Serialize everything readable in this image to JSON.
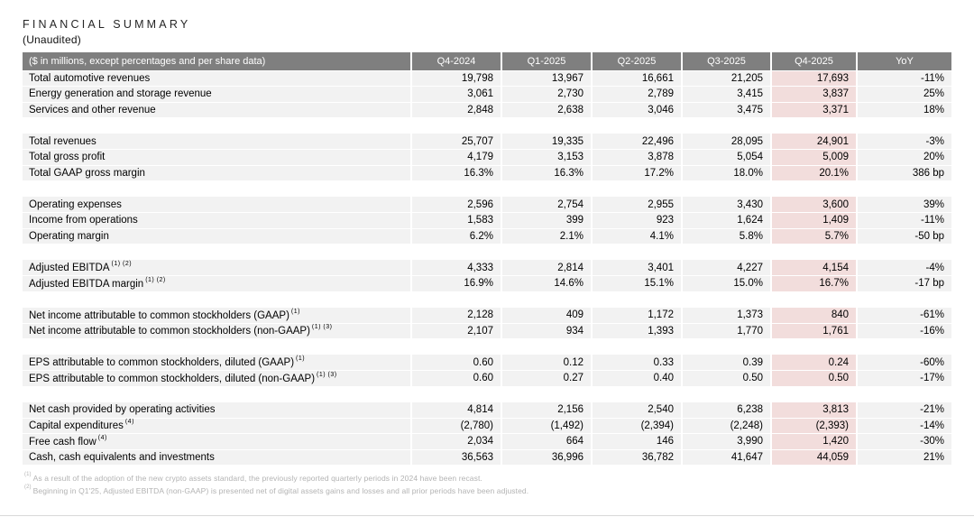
{
  "title": "FINANCIAL SUMMARY",
  "subtitle": "(Unaudited)",
  "colors": {
    "header_bg": "#7f7f7f",
    "header_text": "#ffffff",
    "row_bg": "#f2f2f2",
    "highlight_col_bg": "#f2dddc",
    "footnote_text": "#b3b3b3"
  },
  "table": {
    "header_label": "($ in millions, except percentages and per share data)",
    "columns": [
      "Q4-2024",
      "Q1-2025",
      "Q2-2025",
      "Q3-2025",
      "Q4-2025",
      "YoY"
    ],
    "highlighted_column": "Q4-2025",
    "sections": [
      {
        "rows": [
          {
            "label": "Total automotive revenues",
            "sup": "",
            "values": [
              "19,798",
              "13,967",
              "16,661",
              "21,205",
              "17,693",
              "-11%"
            ]
          },
          {
            "label": "Energy generation and storage revenue",
            "sup": "",
            "values": [
              "3,061",
              "2,730",
              "2,789",
              "3,415",
              "3,837",
              "25%"
            ]
          },
          {
            "label": "Services and other revenue",
            "sup": "",
            "values": [
              "2,848",
              "2,638",
              "3,046",
              "3,475",
              "3,371",
              "18%"
            ]
          }
        ]
      },
      {
        "rows": [
          {
            "label": "Total revenues",
            "sup": "",
            "values": [
              "25,707",
              "19,335",
              "22,496",
              "28,095",
              "24,901",
              "-3%"
            ]
          },
          {
            "label": "Total gross profit",
            "sup": "",
            "values": [
              "4,179",
              "3,153",
              "3,878",
              "5,054",
              "5,009",
              "20%"
            ]
          },
          {
            "label": "Total GAAP gross margin",
            "sup": "",
            "values": [
              "16.3%",
              "16.3%",
              "17.2%",
              "18.0%",
              "20.1%",
              "386 bp"
            ]
          }
        ]
      },
      {
        "rows": [
          {
            "label": "Operating expenses",
            "sup": "",
            "values": [
              "2,596",
              "2,754",
              "2,955",
              "3,430",
              "3,600",
              "39%"
            ]
          },
          {
            "label": "Income from operations",
            "sup": "",
            "values": [
              "1,583",
              "399",
              "923",
              "1,624",
              "1,409",
              "-11%"
            ]
          },
          {
            "label": "Operating margin",
            "sup": "",
            "values": [
              "6.2%",
              "2.1%",
              "4.1%",
              "5.8%",
              "5.7%",
              "-50 bp"
            ]
          }
        ]
      },
      {
        "rows": [
          {
            "label": "Adjusted EBITDA",
            "sup": "(1) (2)",
            "values": [
              "4,333",
              "2,814",
              "3,401",
              "4,227",
              "4,154",
              "-4%"
            ]
          },
          {
            "label": "Adjusted EBITDA margin",
            "sup": "(1) (2)",
            "values": [
              "16.9%",
              "14.6%",
              "15.1%",
              "15.0%",
              "16.7%",
              "-17 bp"
            ]
          }
        ]
      },
      {
        "rows": [
          {
            "label": "Net income attributable to common stockholders (GAAP)",
            "sup": "(1)",
            "values": [
              "2,128",
              "409",
              "1,172",
              "1,373",
              "840",
              "-61%"
            ]
          },
          {
            "label": "Net income attributable to common stockholders (non-GAAP)",
            "sup": "(1) (3)",
            "values": [
              "2,107",
              "934",
              "1,393",
              "1,770",
              "1,761",
              "-16%"
            ]
          }
        ]
      },
      {
        "rows": [
          {
            "label": "EPS attributable to common stockholders, diluted (GAAP)",
            "sup": "(1)",
            "values": [
              "0.60",
              "0.12",
              "0.33",
              "0.39",
              "0.24",
              "-60%"
            ]
          },
          {
            "label": "EPS attributable to common stockholders, diluted (non-GAAP)",
            "sup": "(1) (3)",
            "values": [
              "0.60",
              "0.27",
              "0.40",
              "0.50",
              "0.50",
              "-17%"
            ]
          }
        ]
      },
      {
        "rows": [
          {
            "label": "Net cash provided by operating activities",
            "sup": "",
            "values": [
              "4,814",
              "2,156",
              "2,540",
              "6,238",
              "3,813",
              "-21%"
            ]
          },
          {
            "label": "Capital expenditures",
            "sup": "(4)",
            "values": [
              "(2,780)",
              "(1,492)",
              "(2,394)",
              "(2,248)",
              "(2,393)",
              "-14%"
            ]
          },
          {
            "label": "Free cash flow",
            "sup": "(4)",
            "values": [
              "2,034",
              "664",
              "146",
              "3,990",
              "1,420",
              "-30%"
            ]
          },
          {
            "label": "Cash, cash equivalents and investments",
            "sup": "",
            "values": [
              "36,563",
              "36,996",
              "36,782",
              "41,647",
              "44,059",
              "21%"
            ]
          }
        ]
      }
    ]
  },
  "footnotes": [
    {
      "sup": "(1)",
      "text": "As a result of the adoption of the new crypto assets standard, the previously reported quarterly periods in 2024 have been recast."
    },
    {
      "sup": "(2)",
      "text": "Beginning in Q1'25, Adjusted EBITDA (non-GAAP) is presented net of digital assets gains and losses and all prior periods have been adjusted."
    }
  ]
}
